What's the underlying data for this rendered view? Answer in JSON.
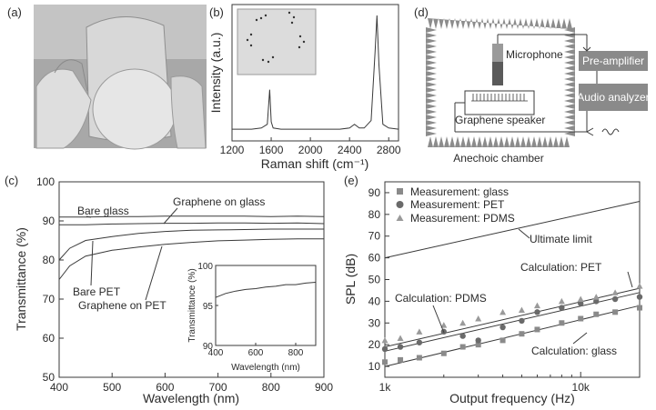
{
  "panels": {
    "a": {
      "label": "(a)"
    },
    "b": {
      "label": "(b)"
    },
    "c": {
      "label": "(c)"
    },
    "d": {
      "label": "(d)"
    },
    "e": {
      "label": "(e)"
    }
  },
  "schematic": {
    "microphone": "Microphone",
    "preamp": "Pre-amplifier",
    "analyzer": "Audio analyzer",
    "speaker": "Graphene speaker",
    "chamber": "Anechoic chamber"
  },
  "chart_data": [
    {
      "panel": "b",
      "type": "line",
      "xlabel": "Raman shift (cm⁻¹)",
      "ylabel": "Intensity (a.u.)",
      "xlim": [
        1200,
        2900
      ],
      "xticks": [
        "1200",
        "1600",
        "2000",
        "2400",
        "2800"
      ],
      "grid": false,
      "series": [
        {
          "x": [
            1200,
            1300,
            1400,
            1500,
            1560,
            1585,
            1600,
            1620,
            1700,
            1900,
            2100,
            2300,
            2400,
            2450,
            2500,
            2550,
            2620,
            2660,
            2680,
            2700,
            2740,
            2800,
            2900
          ],
          "y": [
            0.08,
            0.08,
            0.08,
            0.09,
            0.12,
            0.4,
            0.14,
            0.09,
            0.08,
            0.08,
            0.08,
            0.08,
            0.09,
            0.12,
            0.09,
            0.09,
            0.15,
            0.7,
            1.0,
            0.6,
            0.12,
            0.09,
            0.08
          ]
        }
      ]
    },
    {
      "panel": "c",
      "type": "line",
      "xlabel": "Wavelength (nm)",
      "ylabel": "Transmittance (%)",
      "xlim": [
        400,
        900
      ],
      "ylim": [
        50,
        100
      ],
      "xticks": [
        "400",
        "500",
        "600",
        "700",
        "800",
        "900"
      ],
      "yticks": [
        "50",
        "60",
        "70",
        "80",
        "90",
        "100"
      ],
      "grid": false,
      "annotations": [
        "Bare glass",
        "Graphene on glass",
        "Bare PET",
        "Graphene on PET"
      ],
      "series": [
        {
          "x": [
            400,
            450,
            500,
            550,
            600,
            650,
            700,
            750,
            800,
            850,
            900
          ],
          "y": [
            91.0,
            91.0,
            91.1,
            91.1,
            91.2,
            91.2,
            91.2,
            91.2,
            91.1,
            91.2,
            91.1
          ]
        },
        {
          "x": [
            400,
            450,
            500,
            550,
            600,
            650,
            700,
            750,
            800,
            850,
            900
          ],
          "y": [
            89.0,
            89.0,
            89.2,
            89.3,
            89.4,
            89.4,
            89.5,
            89.5,
            89.4,
            89.5,
            89.3
          ]
        },
        {
          "x": [
            400,
            420,
            450,
            500,
            550,
            600,
            650,
            700,
            750,
            800,
            850,
            900
          ],
          "y": [
            80.0,
            83.0,
            85.0,
            86.0,
            86.8,
            87.3,
            87.6,
            87.7,
            87.8,
            87.9,
            87.9,
            87.9
          ]
        },
        {
          "x": [
            400,
            420,
            450,
            500,
            550,
            600,
            650,
            700,
            750,
            800,
            850,
            900
          ],
          "y": [
            75.0,
            78.5,
            81.0,
            82.5,
            83.3,
            84.0,
            84.5,
            84.9,
            85.1,
            85.3,
            85.4,
            85.4
          ]
        }
      ],
      "inset": {
        "xlabel": "Wavelength (nm)",
        "ylabel": "Transmittance (%)",
        "xlim": [
          400,
          900
        ],
        "ylim": [
          90,
          100
        ],
        "xticks": [
          "400",
          "600",
          "800"
        ],
        "yticks": [
          "90",
          "95",
          "100"
        ],
        "series": [
          {
            "x": [
              400,
              450,
              500,
              550,
              600,
              650,
              700,
              750,
              800,
              850,
              900
            ],
            "y": [
              96.0,
              96.5,
              96.8,
              97.0,
              97.1,
              97.3,
              97.4,
              97.6,
              97.6,
              97.8,
              97.9
            ]
          }
        ]
      }
    },
    {
      "panel": "e",
      "type": "scatter",
      "xlabel": "Output frequency (Hz)",
      "ylabel": "SPL (dB)",
      "xscale": "log",
      "xlim": [
        1000,
        20000
      ],
      "ylim": [
        5,
        95
      ],
      "xticks": [
        "1k",
        "10k"
      ],
      "yticks": [
        "10",
        "20",
        "30",
        "40",
        "50",
        "60",
        "70",
        "80",
        "90"
      ],
      "grid": false,
      "legend_position": "top-left",
      "annotations": [
        "Ultimate limit",
        "Calculation: PET",
        "Calculation: PDMS",
        "Calculation: glass"
      ],
      "series": [
        {
          "name": "Measurement: glass",
          "marker": "square",
          "x": [
            1000,
            1200,
            1500,
            2000,
            2500,
            3000,
            4000,
            5000,
            6000,
            8000,
            10000,
            12000,
            15000,
            20000
          ],
          "y": [
            12,
            13,
            14,
            16,
            19,
            20,
            22,
            25,
            27,
            30,
            32,
            34,
            35,
            37
          ]
        },
        {
          "name": "Measurement: PET",
          "marker": "circle",
          "x": [
            1000,
            1200,
            1500,
            2000,
            2500,
            3000,
            4000,
            5000,
            6000,
            8000,
            10000,
            12000,
            15000,
            20000
          ],
          "y": [
            18,
            19,
            21,
            26,
            24,
            22,
            28,
            31,
            35,
            37,
            39,
            40,
            41,
            42
          ]
        },
        {
          "name": "Measurement: PDMS",
          "marker": "triangle",
          "x": [
            1000,
            1200,
            1500,
            2000,
            2500,
            3000,
            4000,
            5000,
            6000,
            8000,
            10000,
            12000,
            15000,
            20000
          ],
          "y": [
            22,
            23,
            26,
            29,
            30,
            32,
            35,
            36,
            38,
            40,
            41,
            42,
            44,
            47
          ]
        },
        {
          "name": "Ultimate limit",
          "style": "line",
          "x": [
            1000,
            20000
          ],
          "y": [
            60,
            86
          ]
        },
        {
          "name": "Calculation: PET",
          "style": "line",
          "x": [
            1000,
            20000
          ],
          "y": [
            17,
            44
          ]
        },
        {
          "name": "Calculation: PDMS",
          "style": "line",
          "x": [
            1000,
            20000
          ],
          "y": [
            19,
            46
          ]
        },
        {
          "name": "Calculation: glass",
          "style": "line",
          "x": [
            1000,
            20000
          ],
          "y": [
            10,
            38
          ]
        }
      ]
    }
  ]
}
